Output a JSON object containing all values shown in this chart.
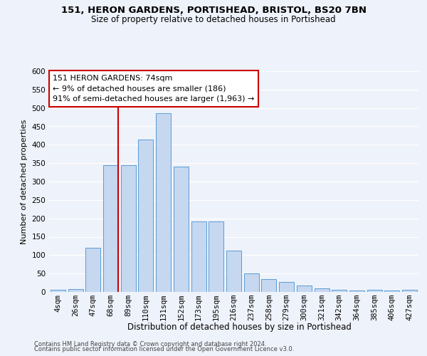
{
  "title1": "151, HERON GARDENS, PORTISHEAD, BRISTOL, BS20 7BN",
  "title2": "Size of property relative to detached houses in Portishead",
  "xlabel": "Distribution of detached houses by size in Portishead",
  "ylabel": "Number of detached properties",
  "annotation_title": "151 HERON GARDENS: 74sqm",
  "annotation_line1": "← 9% of detached houses are smaller (186)",
  "annotation_line2": "91% of semi-detached houses are larger (1,963) →",
  "bar_labels": [
    "4sqm",
    "26sqm",
    "47sqm",
    "68sqm",
    "89sqm",
    "110sqm",
    "131sqm",
    "152sqm",
    "173sqm",
    "195sqm",
    "216sqm",
    "237sqm",
    "258sqm",
    "279sqm",
    "300sqm",
    "321sqm",
    "342sqm",
    "364sqm",
    "385sqm",
    "406sqm",
    "427sqm"
  ],
  "bar_values": [
    5,
    7,
    120,
    345,
    345,
    415,
    485,
    340,
    192,
    192,
    112,
    50,
    35,
    27,
    17,
    9,
    5,
    3,
    5,
    3,
    5
  ],
  "bar_color": "#c5d8f0",
  "bar_edgecolor": "#5b9bd5",
  "vline_color": "#cc0000",
  "vline_x_index": 3,
  "ylim": [
    0,
    600
  ],
  "yticks": [
    0,
    50,
    100,
    150,
    200,
    250,
    300,
    350,
    400,
    450,
    500,
    550,
    600
  ],
  "annotation_box_facecolor": "#ffffff",
  "annotation_box_edgecolor": "#cc0000",
  "footer1": "Contains HM Land Registry data © Crown copyright and database right 2024.",
  "footer2": "Contains public sector information licensed under the Open Government Licence v3.0.",
  "background_color": "#eef2fa",
  "title1_fontsize": 9.5,
  "title2_fontsize": 8.5,
  "ylabel_fontsize": 8,
  "xlabel_fontsize": 8.5,
  "tick_fontsize": 7.5,
  "footer_fontsize": 6.0,
  "annot_fontsize": 8.0
}
